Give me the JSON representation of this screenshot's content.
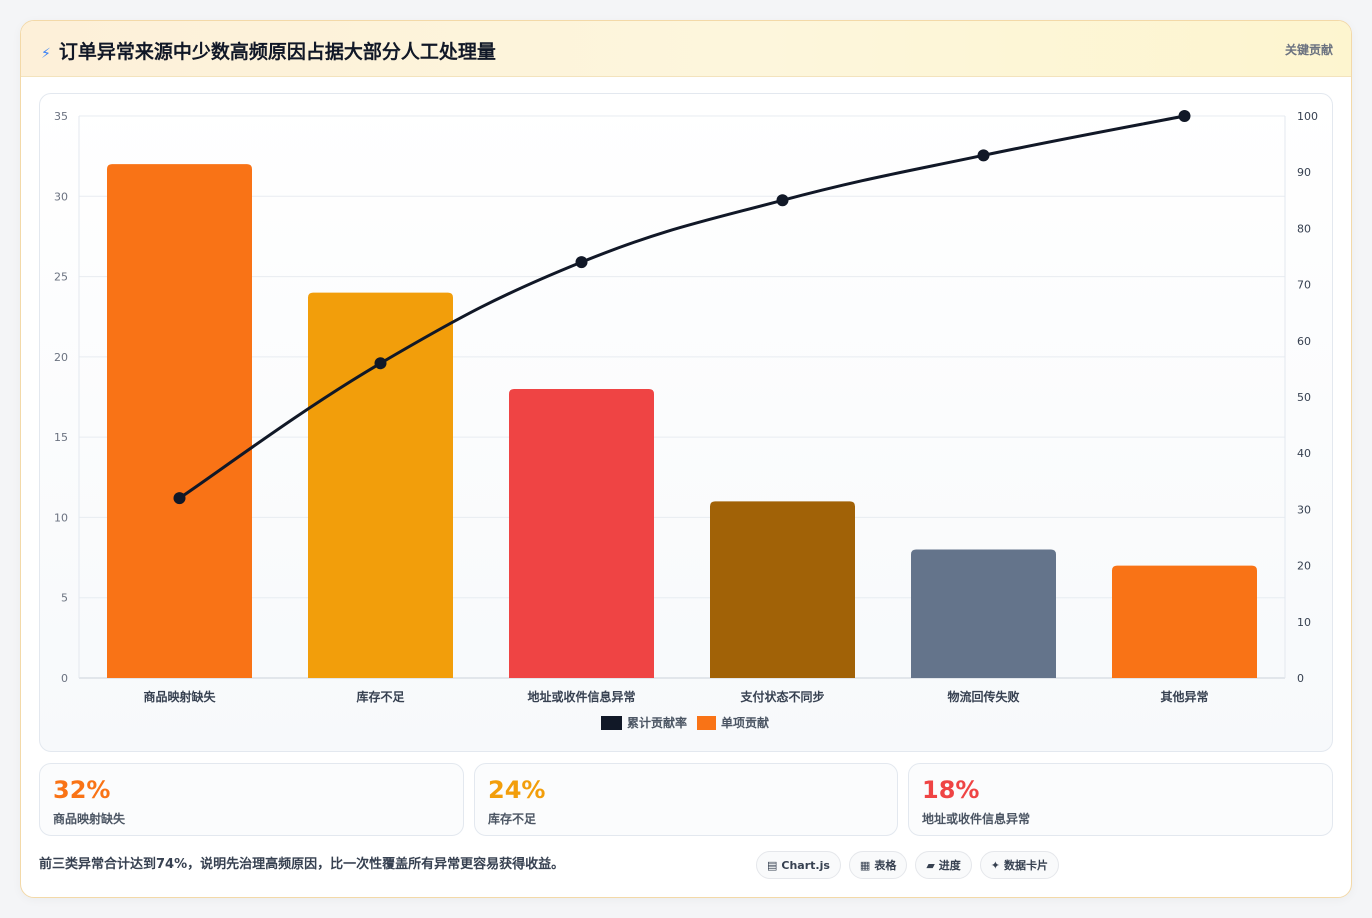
{
  "header": {
    "icon": "bolt-icon",
    "title": "订单异常来源中少数高频原因占据大部分人工处理量",
    "tag": "关键贡献"
  },
  "chart_data": {
    "type": "bar",
    "categories": [
      "商品映射缺失",
      "库存不足",
      "地址或收件信息异常",
      "支付状态不同步",
      "物流回传失败",
      "其他异常"
    ],
    "series": [
      {
        "name": "单项贡献",
        "type": "bar",
        "axis": "left",
        "values": [
          32,
          24,
          18,
          11,
          8,
          7
        ]
      },
      {
        "name": "累计贡献率",
        "type": "line",
        "axis": "right",
        "values": [
          32,
          56,
          74,
          85,
          93,
          100
        ]
      }
    ],
    "bar_colors": [
      "#f97316",
      "#f29e0b",
      "#ef4444",
      "#a16207",
      "#64748b",
      "#f97316"
    ],
    "line_color": "#111827",
    "ylim_left": [
      0,
      35
    ],
    "yticks_left": [
      0,
      5,
      10,
      15,
      20,
      25,
      30,
      35
    ],
    "ylim_right": [
      0,
      100
    ],
    "yticks_right": [
      0,
      10,
      20,
      30,
      40,
      50,
      60,
      70,
      80,
      90,
      100
    ],
    "legend_position": "bottom",
    "grid": true
  },
  "stats": [
    {
      "value": "32%",
      "label": "商品映射缺失",
      "color": "#f97316"
    },
    {
      "value": "24%",
      "label": "库存不足",
      "color": "#f29e0b"
    },
    {
      "value": "18%",
      "label": "地址或收件信息异常",
      "color": "#ef4444"
    }
  ],
  "footer": {
    "note": "前三类异常合计达到74%，说明先治理高频原因，比一次性覆盖所有异常更容易获得收益。",
    "pills": [
      {
        "icon": "chart-icon",
        "glyph": "▤",
        "label": "Chart.js"
      },
      {
        "icon": "table-icon",
        "glyph": "▦",
        "label": "表格"
      },
      {
        "icon": "progress-icon",
        "glyph": "▰",
        "label": "进度"
      },
      {
        "icon": "sparkle-icon",
        "glyph": "✦",
        "label": "数据卡片"
      }
    ]
  }
}
